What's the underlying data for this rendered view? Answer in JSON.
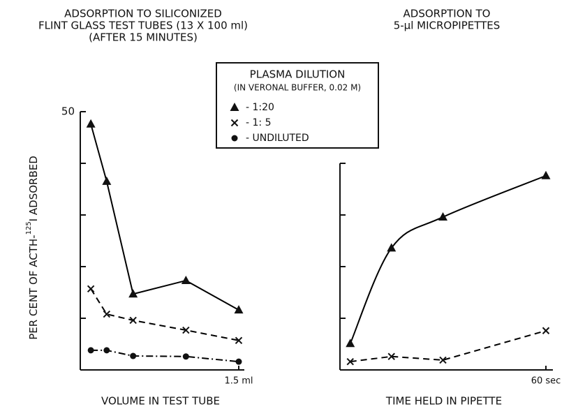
{
  "legend": {
    "title": "PLASMA DILUTION",
    "subtitle": "(IN VERONAL BUFFER, 0.02 M)"
  },
  "chart_data": [
    {
      "type": "line",
      "title": [
        "ADSORPTION TO SILICONIZED",
        "FLINT GLASS TEST TUBES (13 X 100 ml)",
        "(AFTER 15 MINUTES)"
      ],
      "ylabel": [
        "PER CENT OF ACTH-",
        "125",
        "I ADSORBED"
      ],
      "xlabel": "VOLUME IN TEST TUBE",
      "x": [
        0.1,
        0.25,
        0.5,
        1.0,
        1.5
      ],
      "xlim": [
        0,
        1.5
      ],
      "xticks": [
        {
          "value": 1.5,
          "label": "1.5 ml"
        }
      ],
      "ylim": [
        0,
        50
      ],
      "yticks": [
        50
      ],
      "yminor": [
        10,
        20,
        30,
        40
      ],
      "series": [
        {
          "name": "- 1:20",
          "color": "#000000",
          "marker": "triangle",
          "line_style": "solid",
          "values": [
            47.6,
            36.5,
            14.7,
            17.3,
            11.6
          ]
        },
        {
          "name": "- 1: 5",
          "color": "#000000",
          "marker": "cross",
          "line_style": "dashed",
          "values": [
            15.7,
            10.8,
            9.6,
            7.7,
            5.7
          ]
        },
        {
          "name": "- UNDILUTED",
          "color": "#000000",
          "marker": "circle",
          "line_style": "dashdot",
          "values": [
            3.8,
            3.8,
            2.7,
            2.6,
            1.6
          ]
        }
      ]
    },
    {
      "type": "line",
      "title": [
        "ADSORPTION TO",
        "5-µl MICROPIPETTES"
      ],
      "xlabel": "TIME HELD IN PIPETTE",
      "x": [
        3,
        15,
        30,
        60
      ],
      "xlim": [
        0,
        60
      ],
      "xticks": [
        {
          "value": 60,
          "label": "60 sec"
        }
      ],
      "ylim": [
        0,
        40
      ],
      "yticks": [],
      "yminor": [
        10,
        20,
        30,
        40
      ],
      "series": [
        {
          "color": "#000000",
          "marker": "triangle",
          "line_style": "solid",
          "smooth": true,
          "values": [
            5.1,
            23.6,
            29.6,
            37.6
          ]
        },
        {
          "color": "#000000",
          "marker": "cross",
          "line_style": "dashed",
          "values": [
            1.6,
            2.6,
            1.9,
            7.6
          ]
        }
      ]
    }
  ]
}
